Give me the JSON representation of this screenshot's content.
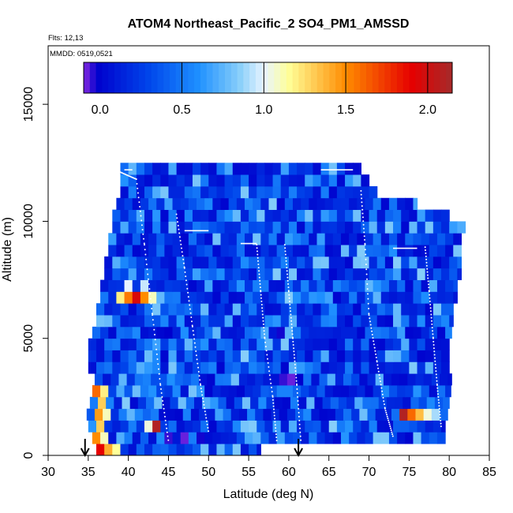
{
  "chart_data": {
    "type": "heatmap",
    "title": "ATOM4 Northeast_Pacific_2 SO4_PM1_AMSSD",
    "annotations": {
      "flights": "Flts: 12,13",
      "dates": "MMDD: 0519,0521"
    },
    "xlabel": "Latitude (deg N)",
    "ylabel": "Altitude (m)",
    "xlim": [
      30,
      85
    ],
    "ylim": [
      0,
      17500
    ],
    "x_ticks": [
      30,
      35,
      40,
      45,
      50,
      55,
      60,
      65,
      70,
      75,
      80,
      85
    ],
    "y_ticks": [
      0,
      5000,
      10000,
      15000
    ],
    "colorbar": {
      "range": [
        -0.1,
        2.15
      ],
      "ticks": [
        0.0,
        0.5,
        1.0,
        1.5,
        2.0
      ],
      "tick_labels": [
        "0.0",
        "0.5",
        "1.0",
        "1.5",
        "2.0"
      ],
      "colors": [
        "#8a2be2",
        "#0000cd",
        "#1e90ff",
        "#e8f4ff",
        "#ffff99",
        "#ff8c00",
        "#e60000",
        "#a52a2a"
      ]
    },
    "markers": {
      "arrow_latitudes": [
        34.6,
        61.2
      ]
    },
    "rows": [
      {
        "alt": 250,
        "lat_start": 36.0,
        "lat_end": 56.5
      },
      {
        "alt": 750,
        "lat_start": 35.5,
        "lat_end": 79.5
      },
      {
        "alt": 1250,
        "lat_start": 35.0,
        "lat_end": 79.5
      },
      {
        "alt": 1750,
        "lat_start": 34.8,
        "lat_end": 79.8
      },
      {
        "alt": 2250,
        "lat_start": 35.2,
        "lat_end": 80.0
      },
      {
        "alt": 2750,
        "lat_start": 35.5,
        "lat_end": 80.2
      },
      {
        "alt": 3250,
        "lat_start": 35.8,
        "lat_end": 80.3
      },
      {
        "alt": 3750,
        "lat_start": 35.0,
        "lat_end": 80.0
      },
      {
        "alt": 4250,
        "lat_start": 35.0,
        "lat_end": 80.0
      },
      {
        "alt": 4750,
        "lat_start": 35.0,
        "lat_end": 80.0
      },
      {
        "alt": 5250,
        "lat_start": 35.5,
        "lat_end": 80.3
      },
      {
        "alt": 5750,
        "lat_start": 36.0,
        "lat_end": 80.5
      },
      {
        "alt": 6250,
        "lat_start": 36.0,
        "lat_end": 80.5
      },
      {
        "alt": 6750,
        "lat_start": 36.5,
        "lat_end": 81.0
      },
      {
        "alt": 7250,
        "lat_start": 36.5,
        "lat_end": 81.0
      },
      {
        "alt": 7750,
        "lat_start": 37.0,
        "lat_end": 81.5
      },
      {
        "alt": 8250,
        "lat_start": 37.0,
        "lat_end": 81.5
      },
      {
        "alt": 8750,
        "lat_start": 37.5,
        "lat_end": 81.5
      },
      {
        "alt": 9250,
        "lat_start": 37.5,
        "lat_end": 81.5
      },
      {
        "alt": 9750,
        "lat_start": 38.0,
        "lat_end": 82.0
      },
      {
        "alt": 10250,
        "lat_start": 38.0,
        "lat_end": 80.0
      },
      {
        "alt": 10750,
        "lat_start": 38.5,
        "lat_end": 76.0
      },
      {
        "alt": 11250,
        "lat_start": 39.0,
        "lat_end": 71.0
      },
      {
        "alt": 11750,
        "lat_start": 39.0,
        "lat_end": 70.0
      },
      {
        "alt": 12250,
        "lat_start": 39.0,
        "lat_end": 69.0
      }
    ],
    "hotspots": [
      {
        "lat": 36.2,
        "alt": 250,
        "value": 1.9
      },
      {
        "lat": 37.0,
        "alt": 250,
        "value": 1.4
      },
      {
        "lat": 38.0,
        "alt": 250,
        "value": 1.15
      },
      {
        "lat": 36.0,
        "alt": 750,
        "value": 1.5
      },
      {
        "lat": 37.0,
        "alt": 750,
        "value": 1.1
      },
      {
        "lat": 35.5,
        "alt": 1250,
        "value": 1.3
      },
      {
        "lat": 35.5,
        "alt": 1750,
        "value": 1.45
      },
      {
        "lat": 36.5,
        "alt": 1750,
        "value": 1.1
      },
      {
        "lat": 35.8,
        "alt": 2250,
        "value": 1.3
      },
      {
        "lat": 35.8,
        "alt": 2750,
        "value": 1.6
      },
      {
        "lat": 36.6,
        "alt": 2750,
        "value": 1.2
      },
      {
        "lat": 41.5,
        "alt": 1250,
        "value": 1.05
      },
      {
        "lat": 42.6,
        "alt": 1250,
        "value": 2.1
      },
      {
        "lat": 39.2,
        "alt": 6750,
        "value": 1.2
      },
      {
        "lat": 40.2,
        "alt": 6750,
        "value": 1.55
      },
      {
        "lat": 41.2,
        "alt": 6750,
        "value": 1.95
      },
      {
        "lat": 42.0,
        "alt": 6750,
        "value": 1.5
      },
      {
        "lat": 43.0,
        "alt": 6750,
        "value": 1.1
      },
      {
        "lat": 40.0,
        "alt": 7250,
        "value": 1.0
      },
      {
        "lat": 41.5,
        "alt": 7250,
        "value": 0.95
      },
      {
        "lat": 73.7,
        "alt": 1750,
        "value": 2.1
      },
      {
        "lat": 74.7,
        "alt": 1750,
        "value": 1.6
      },
      {
        "lat": 75.7,
        "alt": 1750,
        "value": 1.35
      },
      {
        "lat": 76.7,
        "alt": 1750,
        "value": 1.05
      },
      {
        "lat": 77.5,
        "alt": 1750,
        "value": 0.9
      },
      {
        "lat": 75.5,
        "alt": 750,
        "value": 0.8
      },
      {
        "lat": 59.0,
        "alt": 3250,
        "value": -0.05
      },
      {
        "lat": 60.0,
        "alt": 3250,
        "value": -0.08
      },
      {
        "lat": 61.0,
        "alt": 3250,
        "value": -0.02
      },
      {
        "lat": 45.0,
        "alt": 750,
        "value": -0.05
      },
      {
        "lat": 47.0,
        "alt": 750,
        "value": -0.08
      },
      {
        "lat": 49.0,
        "alt": 750,
        "value": -0.03
      },
      {
        "lat": 45.0,
        "alt": 5250,
        "value": -0.02
      },
      {
        "lat": 58.5,
        "alt": 5250,
        "value": -0.03
      }
    ]
  }
}
